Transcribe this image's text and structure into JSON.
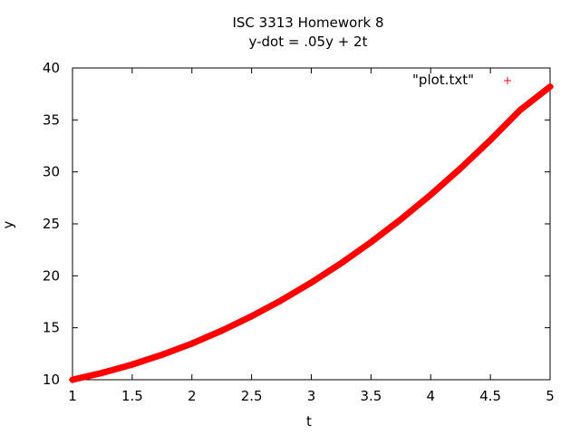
{
  "chart_data": {
    "type": "scatter",
    "title": "ISC 3313 Homework 8",
    "subtitle": "y-dot = .05y + 2t",
    "xlabel": "t",
    "ylabel": "y",
    "xlim": [
      1,
      5
    ],
    "ylim": [
      10,
      40
    ],
    "xticks": [
      1,
      1.5,
      2,
      2.5,
      3,
      3.5,
      4,
      4.5,
      5
    ],
    "xtick_labels": [
      "1",
      "1.5",
      "2",
      "2.5",
      "3",
      "3.5",
      "4",
      "4.5",
      "5"
    ],
    "yticks": [
      10,
      15,
      20,
      25,
      30,
      35,
      40
    ],
    "ytick_labels": [
      "10",
      "15",
      "20",
      "25",
      "30",
      "35",
      "40"
    ],
    "grid": false,
    "legend_position": "top-right",
    "series": [
      {
        "name": "\"plot.txt\"",
        "color": "#ff0000",
        "marker": "plus",
        "x": [
          1,
          1.25,
          1.5,
          1.75,
          2,
          2.25,
          2.5,
          2.75,
          3,
          3.25,
          3.5,
          3.75,
          4,
          4.25,
          4.5,
          4.75,
          5
        ],
        "y": [
          10,
          10.66,
          11.46,
          12.4,
          13.48,
          14.72,
          16.11,
          17.65,
          19.35,
          21.21,
          23.24,
          25.43,
          27.8,
          30.34,
          33.06,
          35.96,
          38.2
        ]
      }
    ]
  }
}
